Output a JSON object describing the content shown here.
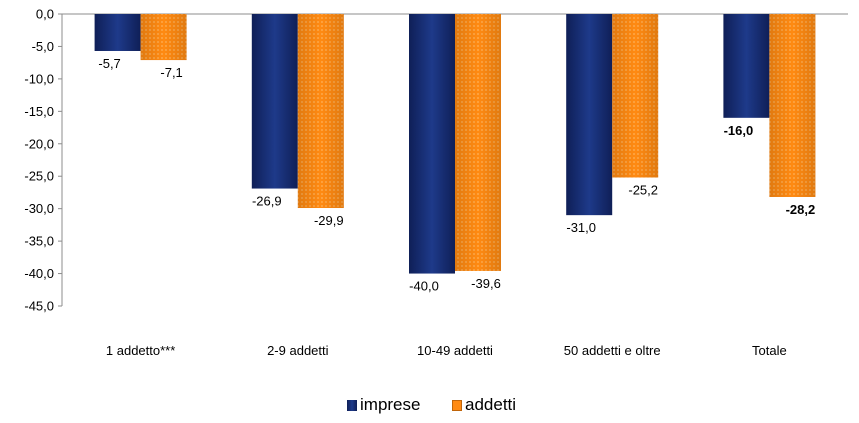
{
  "chart_data": {
    "type": "bar",
    "categories": [
      "1 addetto***",
      "2-9 addetti",
      "10-49 addetti",
      "50  addetti e oltre",
      "Totale"
    ],
    "series": [
      {
        "name": "imprese",
        "values": [
          -5.7,
          -26.9,
          -40.0,
          -31.0,
          -16.0
        ],
        "labels": [
          "-5,7",
          "-26,9",
          "-40,0",
          "-31,0",
          "-16,0"
        ],
        "color": "#152a6e"
      },
      {
        "name": "addetti",
        "values": [
          -7.1,
          -29.9,
          -39.6,
          -25.2,
          -28.2
        ],
        "labels": [
          "-7,1",
          "-29,9",
          "-39,6",
          "-25,2",
          "-28,2"
        ],
        "color": "#ff8c1a"
      }
    ],
    "bold_label_categories": [
      "Totale"
    ],
    "ylim": [
      -45,
      0
    ],
    "y_ticks": [
      0,
      -5,
      -10,
      -15,
      -20,
      -25,
      -30,
      -35,
      -40,
      -45
    ],
    "y_tick_labels": [
      "0,0",
      "-5,0",
      "-10,0",
      "-15,0",
      "-20,0",
      "-25,0",
      "-30,0",
      "-35,0",
      "-40,0",
      "-45,0"
    ],
    "grid": false,
    "legend_position": "bottom",
    "title": "",
    "xlabel": "",
    "ylabel": ""
  }
}
